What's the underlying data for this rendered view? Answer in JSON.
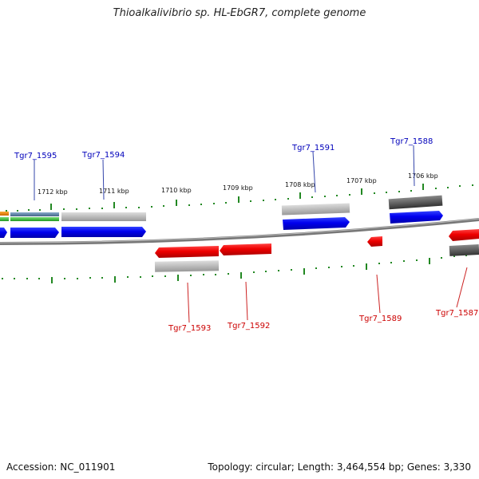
{
  "title": "Thioalkalivibrio sp. HL-EbGR7, complete genome",
  "footer": {
    "accession": "Accession: NC_011901",
    "summary": "Topology: circular; Length: 3,464,554 bp; Genes: 3,330"
  },
  "colors": {
    "forward_gene": "#0000ee",
    "reverse_gene": "#ee0000",
    "label_forward": "#0000bb",
    "label_reverse": "#cc0000",
    "tick": "#228822",
    "backbone": "#888888",
    "feature_light_gray": "#bbbbbb",
    "feature_dark_gray": "#555555",
    "feature_green": "#44bb44",
    "feature_orange": "#ee8800",
    "feature_teal": "#5588aa"
  },
  "scale_labels": [
    "1712 kbp",
    "1711 kbp",
    "1710 kbp",
    "1709 kbp",
    "1708 kbp",
    "1707 kbp",
    "1706 kbp"
  ],
  "genes_forward": [
    {
      "name": "Tgr7_1595"
    },
    {
      "name": "Tgr7_1594"
    },
    {
      "name": "Tgr7_1591"
    },
    {
      "name": "Tgr7_1588"
    }
  ],
  "genes_reverse": [
    {
      "name": "Tgr7_1593"
    },
    {
      "name": "Tgr7_1592"
    },
    {
      "name": "Tgr7_1589"
    },
    {
      "name": "Tgr7_1587"
    }
  ]
}
